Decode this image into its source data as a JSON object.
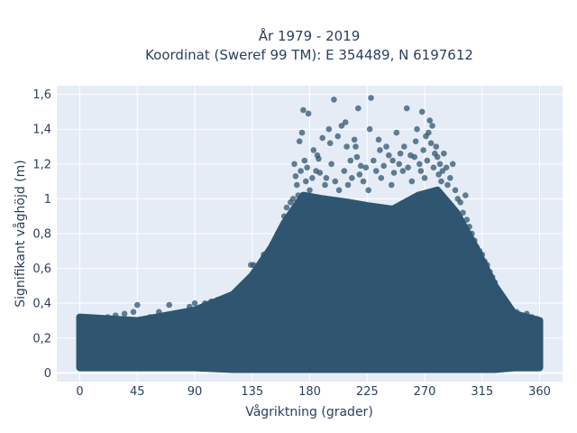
{
  "chart_data": {
    "type": "scatter",
    "title_lines": [
      "År 1979 - 2019",
      "Koordinat (Sweref 99 TM): E 354489, N 6197612"
    ],
    "xlabel": "Vågriktning (grader)",
    "ylabel": "Signifikant våghöjd (m)",
    "xlim": [
      -18,
      378
    ],
    "ylim": [
      -0.05,
      1.65
    ],
    "x_ticks": [
      0,
      45,
      90,
      135,
      180,
      225,
      270,
      315,
      360
    ],
    "x_tick_labels": [
      "0",
      "45",
      "90",
      "135",
      "180",
      "225",
      "270",
      "315",
      "360"
    ],
    "y_ticks": [
      0,
      0.2,
      0.4,
      0.6,
      0.8,
      1.0,
      1.2,
      1.4,
      1.6
    ],
    "y_tick_labels": [
      "0",
      "0,2",
      "0,4",
      "0,6",
      "0,8",
      "1",
      "1,2",
      "1,4",
      "1,6"
    ],
    "grid": true,
    "colors": {
      "marker": "#2f5570",
      "plot_bg": "#e5ecf6",
      "grid": "#ffffff",
      "text": "#2a3f5f"
    },
    "envelope": [
      {
        "x": 0,
        "y_min": 0.03,
        "y_max": 0.32
      },
      {
        "x": 45,
        "y_min": 0.03,
        "y_max": 0.3
      },
      {
        "x": 90,
        "y_min": 0.03,
        "y_max": 0.36
      },
      {
        "x": 120,
        "y_min": 0.02,
        "y_max": 0.45
      },
      {
        "x": 135,
        "y_min": 0.02,
        "y_max": 0.56
      },
      {
        "x": 150,
        "y_min": 0.02,
        "y_max": 0.72
      },
      {
        "x": 160,
        "y_min": 0.02,
        "y_max": 0.86
      },
      {
        "x": 175,
        "y_min": 0.02,
        "y_max": 1.02
      },
      {
        "x": 190,
        "y_min": 0.02,
        "y_max": 1.0
      },
      {
        "x": 210,
        "y_min": 0.02,
        "y_max": 0.98
      },
      {
        "x": 225,
        "y_min": 0.02,
        "y_max": 0.96
      },
      {
        "x": 245,
        "y_min": 0.02,
        "y_max": 0.94
      },
      {
        "x": 265,
        "y_min": 0.02,
        "y_max": 1.02
      },
      {
        "x": 280,
        "y_min": 0.02,
        "y_max": 1.05
      },
      {
        "x": 295,
        "y_min": 0.02,
        "y_max": 0.92
      },
      {
        "x": 310,
        "y_min": 0.02,
        "y_max": 0.72
      },
      {
        "x": 325,
        "y_min": 0.02,
        "y_max": 0.5
      },
      {
        "x": 340,
        "y_min": 0.03,
        "y_max": 0.34
      },
      {
        "x": 360,
        "y_min": 0.03,
        "y_max": 0.3
      }
    ],
    "points": [
      [
        0,
        0.32
      ],
      [
        3,
        0.3
      ],
      [
        12,
        0.28
      ],
      [
        22,
        0.32
      ],
      [
        28,
        0.33
      ],
      [
        35,
        0.34
      ],
      [
        42,
        0.35
      ],
      [
        45,
        0.39
      ],
      [
        55,
        0.32
      ],
      [
        62,
        0.35
      ],
      [
        70,
        0.39
      ],
      [
        78,
        0.3
      ],
      [
        86,
        0.38
      ],
      [
        90,
        0.4
      ],
      [
        98,
        0.4
      ],
      [
        103,
        0.41
      ],
      [
        108,
        0.42
      ],
      [
        115,
        0.44
      ],
      [
        122,
        0.46
      ],
      [
        128,
        0.5
      ],
      [
        134,
        0.62
      ],
      [
        136,
        0.62
      ],
      [
        140,
        0.58
      ],
      [
        144,
        0.68
      ],
      [
        148,
        0.7
      ],
      [
        150,
        0.72
      ],
      [
        152,
        0.74
      ],
      [
        155,
        0.8
      ],
      [
        158,
        0.84
      ],
      [
        160,
        0.9
      ],
      [
        162,
        0.95
      ],
      [
        165,
        0.98
      ],
      [
        167,
        1.0
      ],
      [
        168,
        1.2
      ],
      [
        169,
        1.13
      ],
      [
        170,
        1.08
      ],
      [
        171,
        1.02
      ],
      [
        172,
        1.33
      ],
      [
        173,
        1.16
      ],
      [
        174,
        1.38
      ],
      [
        175,
        1.51
      ],
      [
        176,
        1.22
      ],
      [
        177,
        1.1
      ],
      [
        178,
        1.18
      ],
      [
        179,
        1.49
      ],
      [
        180,
        1.05
      ],
      [
        182,
        1.12
      ],
      [
        183,
        1.28
      ],
      [
        185,
        1.16
      ],
      [
        186,
        1.25
      ],
      [
        187,
        1.23
      ],
      [
        188,
        1.15
      ],
      [
        190,
        1.35
      ],
      [
        192,
        1.08
      ],
      [
        193,
        1.12
      ],
      [
        195,
        1.4
      ],
      [
        196,
        1.32
      ],
      [
        197,
        1.2
      ],
      [
        199,
        1.57
      ],
      [
        200,
        1.1
      ],
      [
        202,
        1.36
      ],
      [
        203,
        1.05
      ],
      [
        205,
        1.42
      ],
      [
        207,
        1.16
      ],
      [
        208,
        1.44
      ],
      [
        209,
        1.3
      ],
      [
        210,
        1.08
      ],
      [
        212,
        1.22
      ],
      [
        213,
        1.12
      ],
      [
        215,
        1.34
      ],
      [
        216,
        1.3
      ],
      [
        217,
        1.24
      ],
      [
        218,
        1.52
      ],
      [
        219,
        1.14
      ],
      [
        220,
        1.19
      ],
      [
        222,
        1.1
      ],
      [
        224,
        1.18
      ],
      [
        226,
        1.05
      ],
      [
        227,
        1.4
      ],
      [
        228,
        1.58
      ],
      [
        230,
        1.22
      ],
      [
        232,
        1.16
      ],
      [
        234,
        1.34
      ],
      [
        235,
        1.28
      ],
      [
        236,
        1.12
      ],
      [
        238,
        1.19
      ],
      [
        240,
        1.3
      ],
      [
        242,
        1.25
      ],
      [
        244,
        1.08
      ],
      [
        245,
        1.22
      ],
      [
        246,
        1.15
      ],
      [
        248,
        1.38
      ],
      [
        250,
        1.2
      ],
      [
        251,
        1.26
      ],
      [
        253,
        1.16
      ],
      [
        254,
        1.3
      ],
      [
        256,
        1.52
      ],
      [
        257,
        1.18
      ],
      [
        259,
        1.25
      ],
      [
        260,
        1.1
      ],
      [
        262,
        1.24
      ],
      [
        263,
        1.33
      ],
      [
        264,
        1.4
      ],
      [
        266,
        1.2
      ],
      [
        267,
        1.16
      ],
      [
        268,
        1.5
      ],
      [
        269,
        1.28
      ],
      [
        270,
        1.12
      ],
      [
        271,
        1.36
      ],
      [
        272,
        1.22
      ],
      [
        273,
        1.38
      ],
      [
        274,
        1.45
      ],
      [
        275,
        1.32
      ],
      [
        276,
        1.42
      ],
      [
        277,
        1.18
      ],
      [
        278,
        1.26
      ],
      [
        279,
        1.3
      ],
      [
        280,
        1.24
      ],
      [
        281,
        1.14
      ],
      [
        282,
        1.2
      ],
      [
        283,
        1.1
      ],
      [
        284,
        1.16
      ],
      [
        285,
        1.26
      ],
      [
        287,
        1.18
      ],
      [
        288,
        1.08
      ],
      [
        290,
        1.12
      ],
      [
        292,
        1.2
      ],
      [
        294,
        1.05
      ],
      [
        296,
        1.0
      ],
      [
        298,
        0.98
      ],
      [
        300,
        0.92
      ],
      [
        302,
        1.02
      ],
      [
        303,
        0.88
      ],
      [
        305,
        0.84
      ],
      [
        307,
        0.8
      ],
      [
        309,
        0.76
      ],
      [
        311,
        0.72
      ],
      [
        313,
        0.7
      ],
      [
        315,
        0.68
      ],
      [
        317,
        0.64
      ],
      [
        319,
        0.62
      ],
      [
        321,
        0.58
      ],
      [
        323,
        0.55
      ],
      [
        325,
        0.52
      ],
      [
        327,
        0.48
      ],
      [
        330,
        0.45
      ],
      [
        332,
        0.42
      ],
      [
        335,
        0.4
      ],
      [
        338,
        0.36
      ],
      [
        342,
        0.35
      ],
      [
        346,
        0.33
      ],
      [
        350,
        0.34
      ],
      [
        354,
        0.32
      ],
      [
        358,
        0.31
      ],
      [
        360,
        0.3
      ]
    ]
  }
}
